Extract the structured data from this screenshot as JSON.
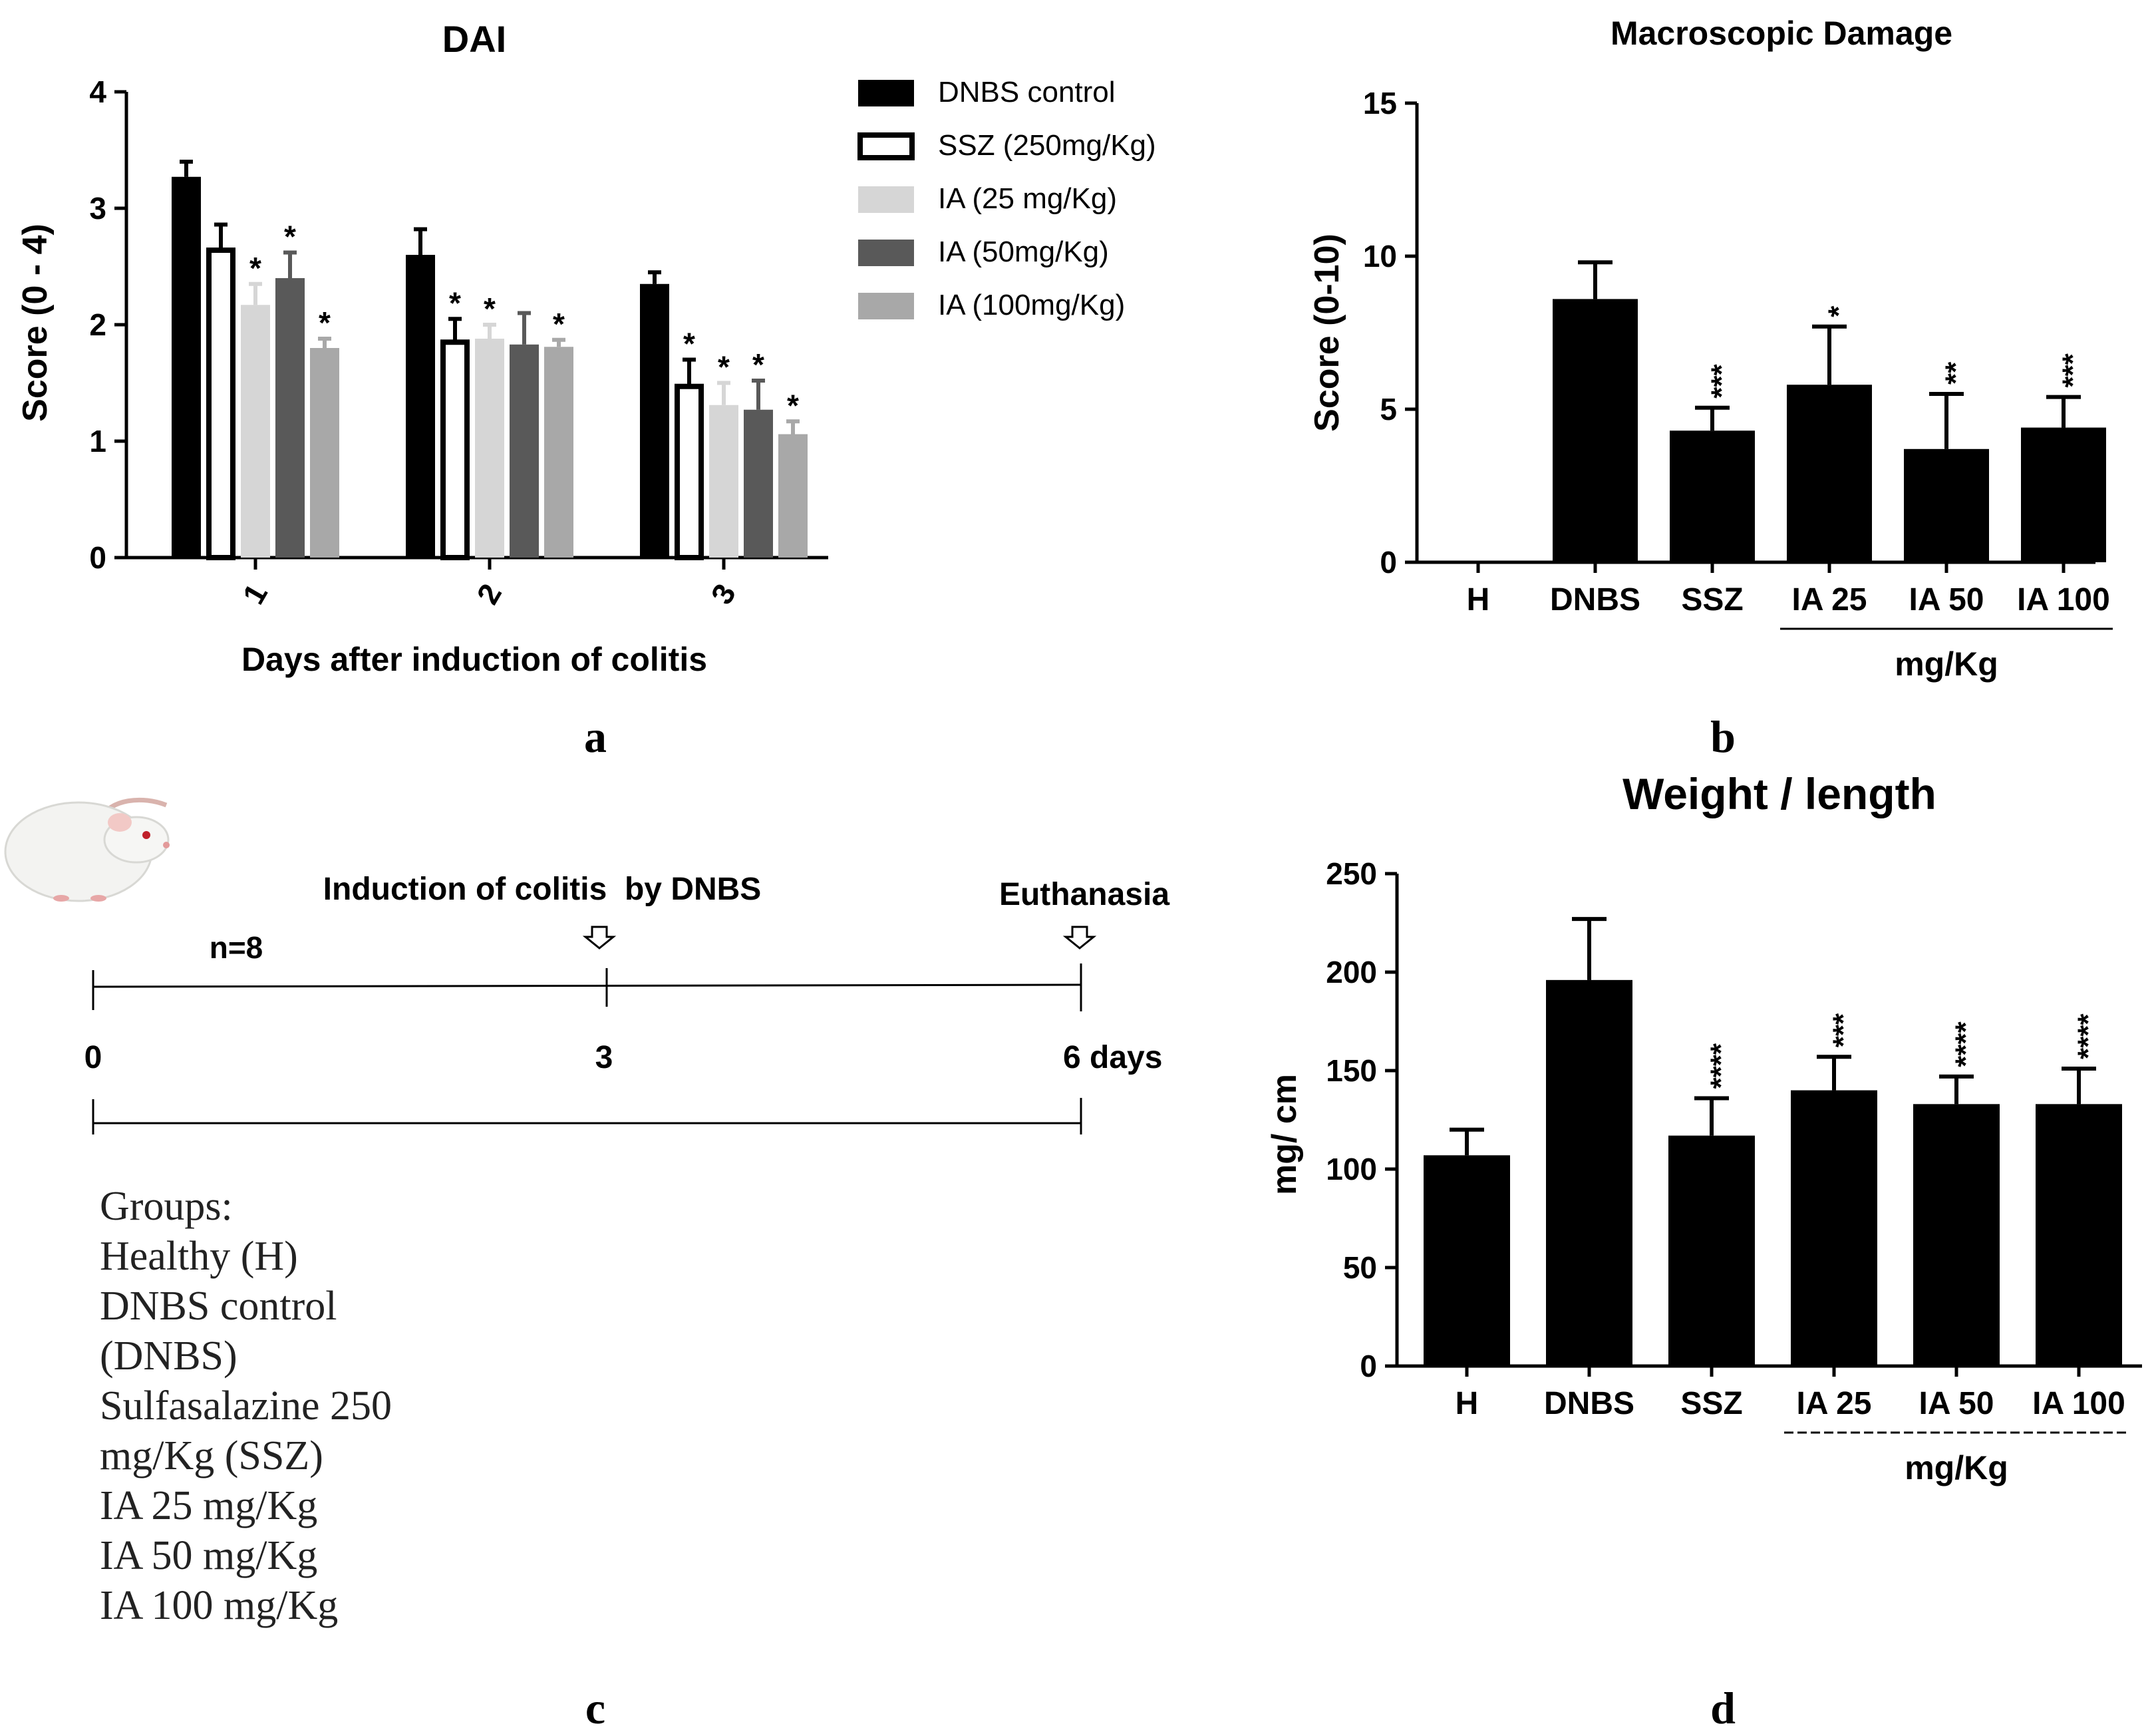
{
  "colors": {
    "dnbs": "#000000",
    "ssz_fill": "#ffffff",
    "ia25": "#d6d6d6",
    "ia50": "#595959",
    "ia100": "#a8a8a8"
  },
  "panel_letters": {
    "a": "a",
    "b": "b",
    "c": "c",
    "d": "d"
  },
  "chart_data": [
    {
      "panel": "a",
      "type": "bar",
      "title": "DAI",
      "xlabel": "Days after induction of colitis",
      "ylabel": "Score (0 - 4)",
      "ylim": [
        0,
        4
      ],
      "yticks": [
        "0",
        "1",
        "2",
        "3",
        "4"
      ],
      "categories": [
        "1",
        "2",
        "3"
      ],
      "legend_position": "top-right",
      "series": [
        {
          "name": "DNBS control",
          "key": "dnbs",
          "values": [
            3.27,
            2.6,
            2.35
          ],
          "errors": [
            0.13,
            0.22,
            0.1
          ],
          "sig": [
            "",
            "",
            ""
          ]
        },
        {
          "name": "SSZ (250mg/Kg)",
          "key": "ssz",
          "values": [
            2.64,
            1.85,
            1.47
          ],
          "errors": [
            0.22,
            0.2,
            0.23
          ],
          "sig": [
            "",
            "*",
            "*"
          ]
        },
        {
          "name": "IA (25 mg/Kg)",
          "key": "ia25",
          "values": [
            2.17,
            1.88,
            1.31
          ],
          "errors": [
            0.18,
            0.12,
            0.19
          ],
          "sig": [
            "*",
            "*",
            "*"
          ]
        },
        {
          "name": "IA (50mg/Kg)",
          "key": "ia50",
          "values": [
            2.4,
            1.83,
            1.27
          ],
          "errors": [
            0.22,
            0.27,
            0.25
          ],
          "sig": [
            "*",
            "",
            "*"
          ]
        },
        {
          "name": "IA (100mg/Kg)",
          "key": "ia100",
          "values": [
            1.8,
            1.81,
            1.06
          ],
          "errors": [
            0.08,
            0.06,
            0.11
          ],
          "sig": [
            "*",
            "*",
            "*"
          ]
        }
      ]
    },
    {
      "panel": "b",
      "type": "bar",
      "title": "Macroscopic Damage",
      "xlabel": "mg/Kg",
      "ylabel": "Score (0-10)",
      "ylim": [
        0,
        15
      ],
      "yticks": [
        "0",
        "5",
        "10",
        "15"
      ],
      "categories": [
        "H",
        "DNBS",
        "SSZ",
        "IA 25",
        "IA 50",
        "IA 100"
      ],
      "values": [
        0,
        8.6,
        4.3,
        5.8,
        3.7,
        4.4
      ],
      "errors": [
        0,
        1.2,
        0.75,
        1.9,
        1.8,
        1.0
      ],
      "sig": [
        "",
        "",
        "***",
        "*",
        "**",
        "***"
      ],
      "group_label": "mg/Kg"
    },
    {
      "panel": "d",
      "type": "bar",
      "title": "Weight / length",
      "xlabel": "mg/Kg",
      "ylabel": "mg/ cm",
      "ylim": [
        0,
        250
      ],
      "yticks": [
        "0",
        "50",
        "100",
        "150",
        "200",
        "250"
      ],
      "categories": [
        "H",
        "DNBS",
        "SSZ",
        "IA 25",
        "IA 50",
        "IA 100"
      ],
      "values": [
        107,
        196,
        117,
        140,
        133,
        133
      ],
      "errors": [
        13,
        31,
        19,
        17,
        14,
        18
      ],
      "sig": [
        "",
        "",
        "****",
        "***",
        "****",
        "****"
      ],
      "group_label": "mg/Kg"
    }
  ],
  "timeline": {
    "n_label": "n=8",
    "induction_label": "Induction of colitis  by DNBS",
    "euthanasia_label": "Euthanasia",
    "day0": "0",
    "day3": "3",
    "day6": "6 days",
    "groups_lines": [
      "Groups:",
      "Healthy (H)",
      "DNBS control",
      "(DNBS)",
      "Sulfasalazine 250",
      "mg/Kg (SSZ)",
      "IA 25 mg/Kg",
      "IA 50 mg/Kg",
      "IA 100 mg/Kg"
    ]
  }
}
